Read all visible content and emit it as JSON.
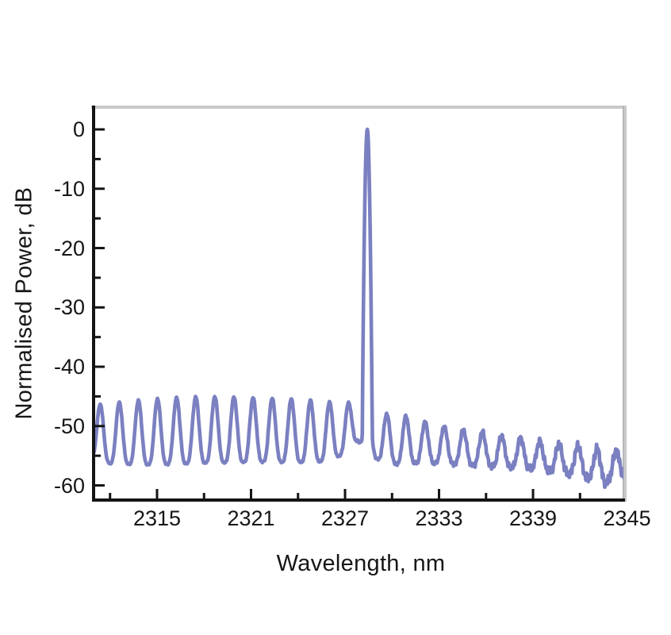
{
  "chart_data": {
    "type": "line",
    "title": "",
    "xlabel": "Wavelength, nm",
    "ylabel": "Normalised Power, dB",
    "xlim": [
      2310.95,
      2344.87
    ],
    "ylim": [
      -62.47,
      3.75
    ],
    "x_major_ticks": [
      2315,
      2321,
      2327,
      2333,
      2339,
      2345
    ],
    "x_minor_ticks": [
      2312,
      2318,
      2324,
      2330,
      2336,
      2342
    ],
    "y_major_ticks": [
      0,
      -10,
      -20,
      -30,
      -40,
      -50,
      -60
    ],
    "y_minor_ticks": [
      -5,
      -15,
      -25,
      -35,
      -45,
      -55
    ],
    "grid": false,
    "legend": "none",
    "frame_color": "#c9c9c9",
    "frame_shadow_color": "#b0b0b0",
    "axis_color": "#141414",
    "line_color": "#7b80c1",
    "line_width": 4.6,
    "main_peak_point": {
      "wavelength_nm": 2328.4,
      "power_db": 0
    },
    "mode_spacing_nm": 1.22,
    "series_model": {
      "description": "Single-mode laser spectrum: Fabry-Perot mode comb with one lasing line normalised to 0 dB",
      "comb_period_nm": 1.22,
      "comb_phase_ref_nm": 2328.45,
      "comb_peak_sharpness": 1.7,
      "main_peak": {
        "center_nm": 2328.42,
        "top_db": 0,
        "parabolic_curvature_db_per_nm2": 500
      },
      "top_envelope": [
        [
          2310.9,
          -46.6
        ],
        [
          2311.4,
          -46.3
        ],
        [
          2313,
          -45.9
        ],
        [
          2315,
          -45.4
        ],
        [
          2317,
          -45.1
        ],
        [
          2319,
          -45.0
        ],
        [
          2321,
          -45.2
        ],
        [
          2323,
          -45.3
        ],
        [
          2325,
          -45.7
        ],
        [
          2326.5,
          -46.0
        ],
        [
          2328.4,
          -46.2
        ],
        [
          2329.7,
          -48.0
        ],
        [
          2330.9,
          -48.3
        ],
        [
          2332.1,
          -49.3
        ],
        [
          2333.3,
          -50.0
        ],
        [
          2334.5,
          -50.6
        ],
        [
          2335.8,
          -51.0
        ],
        [
          2337.0,
          -51.6
        ],
        [
          2338.2,
          -52.0
        ],
        [
          2339.4,
          -52.5
        ],
        [
          2340.7,
          -53.0
        ],
        [
          2341.9,
          -53.3
        ],
        [
          2343.1,
          -53.8
        ],
        [
          2344.3,
          -54.2
        ],
        [
          2344.9,
          -54.4
        ]
      ],
      "bottom_envelope": [
        [
          2310.9,
          -55.3
        ],
        [
          2312,
          -56.3
        ],
        [
          2314,
          -56.5
        ],
        [
          2316,
          -56.4
        ],
        [
          2318,
          -56.2
        ],
        [
          2320,
          -56.1
        ],
        [
          2322,
          -56.0
        ],
        [
          2324,
          -56.1
        ],
        [
          2326,
          -55.9
        ],
        [
          2327.0,
          -54.5
        ],
        [
          2327.8,
          -52.4
        ],
        [
          2328.6,
          -54.8
        ],
        [
          2329.1,
          -55.6
        ],
        [
          2330,
          -56.4
        ],
        [
          2332,
          -56.2
        ],
        [
          2334,
          -56.4
        ],
        [
          2336,
          -56.7
        ],
        [
          2338,
          -57.0
        ],
        [
          2340,
          -57.5
        ],
        [
          2342,
          -58.2
        ],
        [
          2343.6,
          -59.6
        ],
        [
          2344.4,
          -58.6
        ],
        [
          2344.9,
          -58.3
        ]
      ],
      "noise_amplitude": [
        [
          2311,
          0.15
        ],
        [
          2328,
          0.2
        ],
        [
          2330,
          0.3
        ],
        [
          2334,
          0.45
        ],
        [
          2338,
          0.7
        ],
        [
          2342,
          0.95
        ],
        [
          2344.9,
          1.15
        ]
      ],
      "noise_freqs": [
        41.7,
        77.3,
        18.9
      ],
      "sample_step_nm": 0.025
    }
  }
}
